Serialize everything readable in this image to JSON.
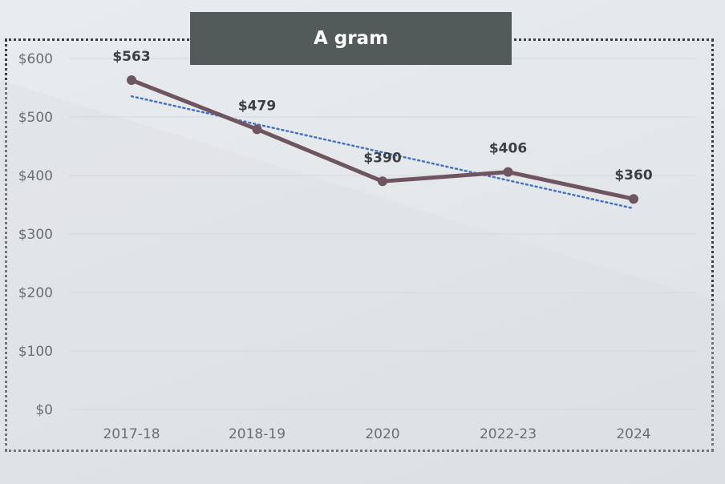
{
  "chart_data": {
    "type": "line",
    "title": "A gram",
    "categories": [
      "2017-18",
      "2018-19",
      "2020",
      "2022-23",
      "2024"
    ],
    "values": [
      563,
      479,
      390,
      406,
      360
    ],
    "data_labels": [
      "$563",
      "$479",
      "$390",
      "$406",
      "$360"
    ],
    "y_ticks": [
      0,
      100,
      200,
      300,
      400,
      500,
      600
    ],
    "y_tick_labels": [
      "$0",
      "$100",
      "$200",
      "$300",
      "$400",
      "$500",
      "$600"
    ],
    "ylim": [
      0,
      600
    ],
    "grid": true,
    "trendline": {
      "type": "linear",
      "style": "dotted"
    },
    "colors": {
      "series": "#6e5560",
      "trendline": "#4472c4",
      "grid": "#d3d8dc",
      "title_bg": "#535a5a",
      "title_text": "#ffffff"
    }
  }
}
